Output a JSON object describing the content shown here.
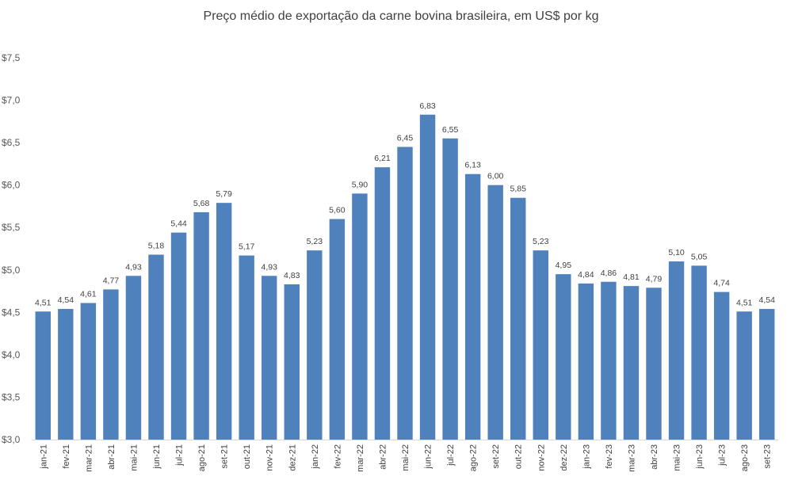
{
  "chart_data": {
    "type": "bar",
    "title": "Preço médio de exportação da carne bovina brasileira, em US$ por kg",
    "xlabel": "",
    "ylabel": "",
    "ylim": [
      3.0,
      7.5
    ],
    "yticks": [
      "$3,0",
      "$3,5",
      "$4,0",
      "$4,5",
      "$5,0",
      "$5,5",
      "$6,0",
      "$6,5",
      "$7,0",
      "$7,5"
    ],
    "ytick_values": [
      3.0,
      3.5,
      4.0,
      4.5,
      5.0,
      5.5,
      6.0,
      6.5,
      7.0,
      7.5
    ],
    "grid": false,
    "legend": "none",
    "bar_color": "#4f81bd",
    "categories": [
      "jan-21",
      "fev-21",
      "mar-21",
      "abr-21",
      "mai-21",
      "jun-21",
      "jul-21",
      "ago-21",
      "set-21",
      "out-21",
      "nov-21",
      "dez-21",
      "jan-22",
      "fev-22",
      "mar-22",
      "abr-22",
      "mai-22",
      "jun-22",
      "jul-22",
      "ago-22",
      "set-22",
      "out-22",
      "nov-22",
      "dez-22",
      "jan-23",
      "fev-23",
      "mar-23",
      "abr-23",
      "mai-23",
      "jun-23",
      "jul-23",
      "ago-23",
      "set-23"
    ],
    "values": [
      4.51,
      4.54,
      4.61,
      4.77,
      4.93,
      5.18,
      5.44,
      5.68,
      5.79,
      5.17,
      4.93,
      4.83,
      5.23,
      5.6,
      5.9,
      6.21,
      6.45,
      6.83,
      6.55,
      6.13,
      6.0,
      5.85,
      5.23,
      4.95,
      4.84,
      4.86,
      4.81,
      4.79,
      5.1,
      5.05,
      4.74,
      4.51,
      4.54
    ],
    "data_labels": [
      "4,51",
      "4,54",
      "4,61",
      "4,77",
      "4,93",
      "5,18",
      "5,44",
      "5,68",
      "5,79",
      "5,17",
      "4,93",
      "4,83",
      "5,23",
      "5,60",
      "5,90",
      "6,21",
      "6,45",
      "6,83",
      "6,55",
      "6,13",
      "6,00",
      "5,85",
      "5,23",
      "4,95",
      "4,84",
      "4,86",
      "4,81",
      "4,79",
      "5,10",
      "5,05",
      "4,74",
      "4,51",
      "4,54"
    ]
  }
}
